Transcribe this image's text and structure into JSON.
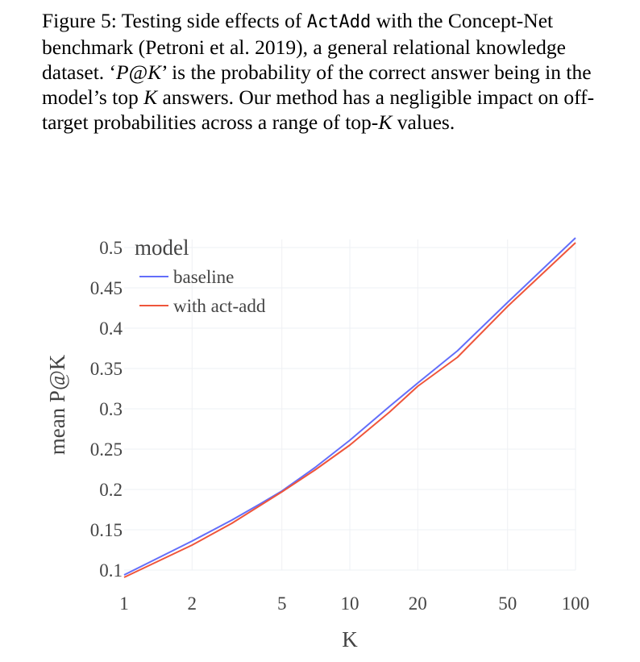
{
  "caption": {
    "part1": "Figure 5: Testing side effects of ",
    "method": "ActAdd",
    "part2": " with the Concept-Net benchmark (Petroni et al. 2019), a general relational knowledge dataset. ‘",
    "metric": "P@K",
    "part3": "’ is the probability of the correct answer being in the model’s top ",
    "k1": "K",
    "part4": " answers. Our method has a negligible impact on off-target probabilities across a range of top-",
    "k2": "K",
    "part5": " values."
  },
  "colors": {
    "baseline": "#636efa",
    "act_add": "#ef553b",
    "grid": "#eef0f4"
  },
  "chart_data": {
    "type": "line",
    "xlabel": "K",
    "ylabel": "mean P@K",
    "xscale": "log",
    "xlim": [
      1,
      100
    ],
    "ylim": [
      0.1,
      0.51
    ],
    "x_ticks": [
      1,
      2,
      5,
      10,
      20,
      50,
      100
    ],
    "x_tick_labels": [
      "1",
      "2",
      "5",
      "10",
      "20",
      "50",
      "100"
    ],
    "y_ticks": [
      0.1,
      0.15,
      0.2,
      0.25,
      0.3,
      0.35,
      0.4,
      0.45,
      0.5
    ],
    "y_tick_labels": [
      "0.1",
      "0.15",
      "0.2",
      "0.25",
      "0.3",
      "0.35",
      "0.4",
      "0.45",
      "0.5"
    ],
    "legend": {
      "title": "model",
      "position": "top-left"
    },
    "x": [
      1,
      2,
      3,
      4,
      5,
      7,
      10,
      15,
      20,
      30,
      50,
      100
    ],
    "series": [
      {
        "name": "baseline",
        "values": [
          0.094,
          0.136,
          0.162,
          0.182,
          0.198,
          0.227,
          0.261,
          0.303,
          0.332,
          0.372,
          0.432,
          0.512
        ]
      },
      {
        "name": "with act-add",
        "values": [
          0.091,
          0.131,
          0.158,
          0.18,
          0.197,
          0.224,
          0.255,
          0.296,
          0.328,
          0.364,
          0.427,
          0.506
        ]
      }
    ]
  }
}
